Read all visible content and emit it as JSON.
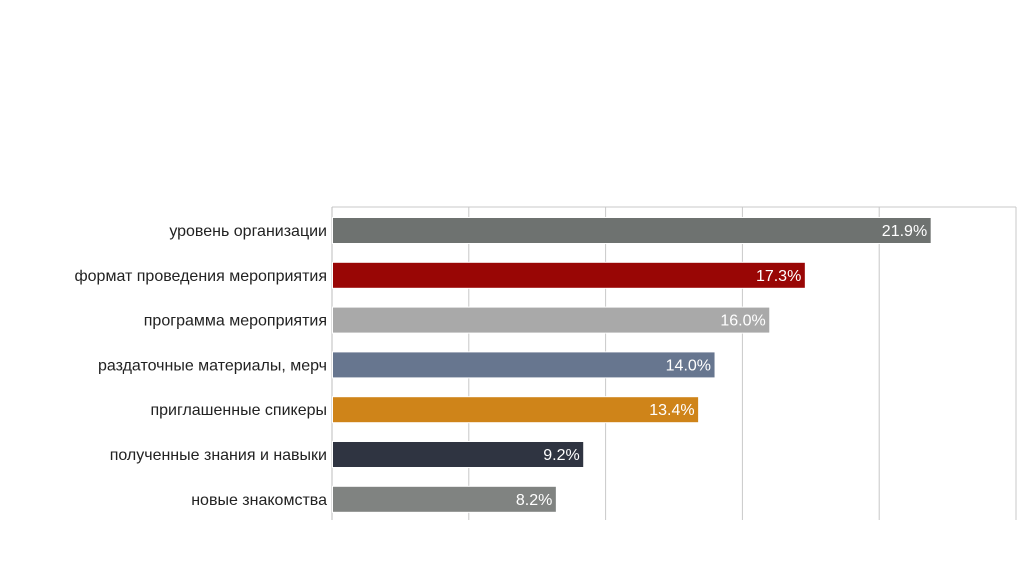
{
  "chart_data": {
    "type": "bar",
    "orientation": "horizontal",
    "title": "",
    "xlabel": "",
    "ylabel": "",
    "xlim": [
      0,
      25
    ],
    "grid": true,
    "legend": "none",
    "categories": [
      "уровень организации",
      "формат проведения мероприятия",
      "программа мероприятия",
      "раздаточные материалы, мерч",
      "приглашенные спикеры",
      "полученные знания и навыки",
      "новые знакомства"
    ],
    "values": [
      21.9,
      17.3,
      16.0,
      14.0,
      13.4,
      9.2,
      8.2
    ],
    "value_labels": [
      "21.9%",
      "17.3%",
      "16.0%",
      "14.0%",
      "13.4%",
      "9.2%",
      "8.2%"
    ],
    "bar_colors": [
      "#6e7270",
      "#990605",
      "#a9a9a9",
      "#67768f",
      "#cf8419",
      "#2f3441",
      "#808381"
    ],
    "grid_color": "#c8c8c8",
    "label_color": "#ffffff"
  }
}
